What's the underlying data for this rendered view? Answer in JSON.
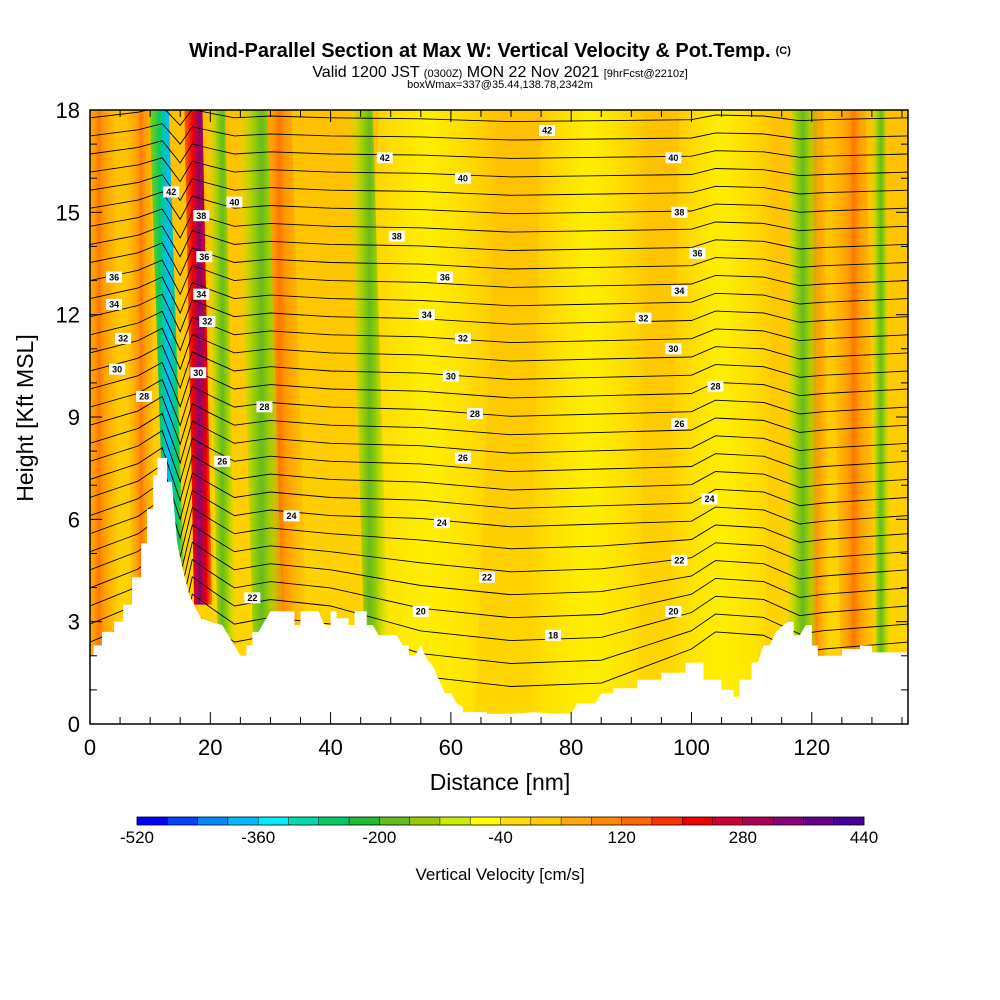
{
  "chart_data": {
    "type": "heatmap",
    "title": "Wind-Parallel Section at Max W: Vertical Velocity & Pot.Temp.",
    "title_mark": "(C)",
    "subtitle": {
      "part1": "Valid 1200 JST ",
      "part2": "(0300Z)",
      "part3": " MON 22 Nov 2021 ",
      "part4": "[9hrFcst@2210z]"
    },
    "subtitle2": "boxWmax=337@35.44,138.78,2342m",
    "xlabel": "Distance [nm]",
    "ylabel": "Height [Kft MSL]",
    "xlim": [
      0,
      136
    ],
    "ylim": [
      0,
      18
    ],
    "x_ticks": [
      "0",
      "20",
      "40",
      "60",
      "80",
      "100",
      "120"
    ],
    "y_ticks": [
      "0",
      "3",
      "6",
      "9",
      "12",
      "15",
      "18"
    ],
    "colorbar": {
      "label": "Vertical Velocity [cm/s]",
      "tick_labels": [
        "-520",
        "-360",
        "-200",
        "-40",
        "120",
        "280",
        "440"
      ],
      "colors": [
        "#0000ff",
        "#0044ff",
        "#0088ff",
        "#00bbff",
        "#00eeff",
        "#00ddaa",
        "#00cc66",
        "#22bb33",
        "#66bb22",
        "#99cc00",
        "#ccee00",
        "#ffff00",
        "#ffdd00",
        "#ffcc00",
        "#ffaa00",
        "#ff8800",
        "#ff6600",
        "#ff3300",
        "#ee0000",
        "#cc0033",
        "#aa0055",
        "#880077",
        "#660088",
        "#440099"
      ]
    },
    "contour_labels": [
      {
        "x": 76,
        "y": 17.4,
        "text": "42"
      },
      {
        "x": 49,
        "y": 16.6,
        "text": "42"
      },
      {
        "x": 97,
        "y": 16.6,
        "text": "40"
      },
      {
        "x": 62,
        "y": 16.0,
        "text": "40"
      },
      {
        "x": 13.5,
        "y": 15.6,
        "text": "42"
      },
      {
        "x": 24,
        "y": 15.3,
        "text": "40"
      },
      {
        "x": 18.5,
        "y": 14.9,
        "text": "38"
      },
      {
        "x": 98,
        "y": 15.0,
        "text": "38"
      },
      {
        "x": 51,
        "y": 14.3,
        "text": "38"
      },
      {
        "x": 101,
        "y": 13.8,
        "text": "36"
      },
      {
        "x": 19,
        "y": 13.7,
        "text": "36"
      },
      {
        "x": 59,
        "y": 13.1,
        "text": "36"
      },
      {
        "x": 4,
        "y": 13.1,
        "text": "36"
      },
      {
        "x": 98,
        "y": 12.7,
        "text": "34"
      },
      {
        "x": 18.5,
        "y": 12.6,
        "text": "34"
      },
      {
        "x": 4,
        "y": 12.3,
        "text": "34"
      },
      {
        "x": 56,
        "y": 12.0,
        "text": "34"
      },
      {
        "x": 92,
        "y": 11.9,
        "text": "32"
      },
      {
        "x": 19.5,
        "y": 11.8,
        "text": "32"
      },
      {
        "x": 5.5,
        "y": 11.3,
        "text": "32"
      },
      {
        "x": 62,
        "y": 11.3,
        "text": "32"
      },
      {
        "x": 97,
        "y": 11.0,
        "text": "30"
      },
      {
        "x": 18,
        "y": 10.3,
        "text": "30"
      },
      {
        "x": 4.5,
        "y": 10.4,
        "text": "30"
      },
      {
        "x": 60,
        "y": 10.2,
        "text": "30"
      },
      {
        "x": 104,
        "y": 9.9,
        "text": "28"
      },
      {
        "x": 9,
        "y": 9.6,
        "text": "28"
      },
      {
        "x": 29,
        "y": 9.3,
        "text": "28"
      },
      {
        "x": 64,
        "y": 9.1,
        "text": "28"
      },
      {
        "x": 98,
        "y": 8.8,
        "text": "26"
      },
      {
        "x": 22,
        "y": 7.7,
        "text": "26"
      },
      {
        "x": 62,
        "y": 7.8,
        "text": "26"
      },
      {
        "x": 103,
        "y": 6.6,
        "text": "24"
      },
      {
        "x": 33.5,
        "y": 6.1,
        "text": "24"
      },
      {
        "x": 58.5,
        "y": 5.9,
        "text": "24"
      },
      {
        "x": 98,
        "y": 4.8,
        "text": "22"
      },
      {
        "x": 66,
        "y": 4.3,
        "text": "22"
      },
      {
        "x": 27,
        "y": 3.7,
        "text": "22"
      },
      {
        "x": 55,
        "y": 3.3,
        "text": "20"
      },
      {
        "x": 97,
        "y": 3.3,
        "text": "20"
      },
      {
        "x": 77,
        "y": 2.6,
        "text": "18"
      }
    ]
  }
}
